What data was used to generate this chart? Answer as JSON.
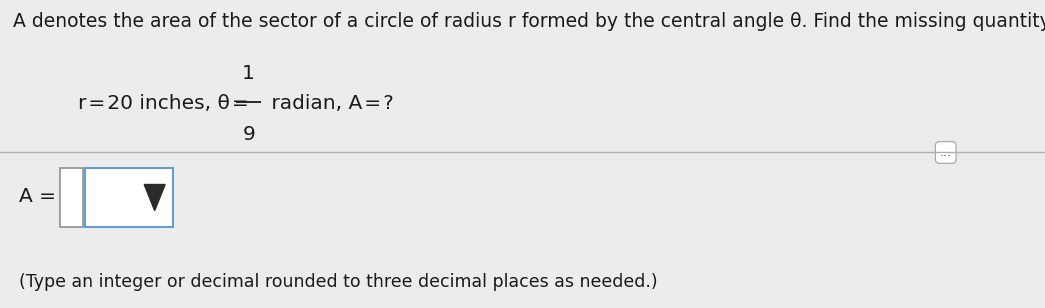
{
  "bg_color_top": "#ececec",
  "bg_color_bottom": "#e4e4e4",
  "title_text": "A denotes the area of the sector of a circle of radius r formed by the central angle θ. Find the missing quantity.",
  "problem_text_1": "r = 20 inches, θ = ",
  "fraction_num": "1",
  "fraction_den": "9",
  "problem_text_2": " radian, A = ?",
  "answer_label": "A =",
  "hint_text": "(Type an integer or decimal rounded to three decimal places as needed.)",
  "dots_button_text": "...",
  "title_fontsize": 13.5,
  "problem_fontsize": 14.5,
  "hint_fontsize": 12.5,
  "answer_fontsize": 14.5,
  "title_color": "#1a1a1a",
  "problem_color": "#1a1a1a",
  "hint_color": "#1a1a1a",
  "divider_color": "#b0b0b0",
  "input_border_color": "#5b9bd5",
  "small_box_border": "#888888"
}
